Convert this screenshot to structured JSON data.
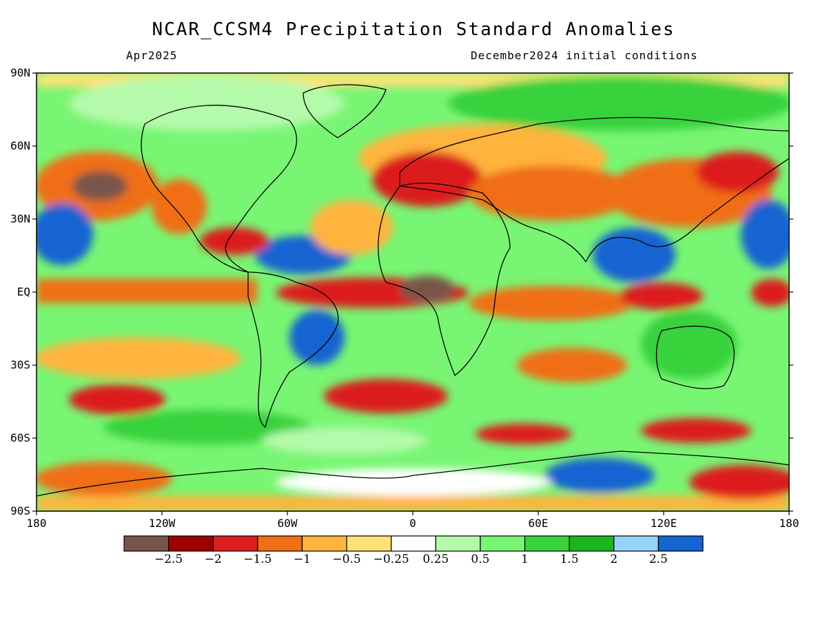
{
  "header": {
    "title": "NCAR_CCSM4 Precipitation Standard Anomalies",
    "valid_month": "Apr2025",
    "initial_conditions": "December2024 initial conditions"
  },
  "axes": {
    "lat_labels": [
      "90N",
      "60N",
      "30N",
      "EQ",
      "30S",
      "60S",
      "90S"
    ],
    "lon_labels": [
      "180",
      "120W",
      "60W",
      "0",
      "60E",
      "120E",
      "180"
    ]
  },
  "colorbar": {
    "colors": [
      "#795548",
      "#a00000",
      "#dc1e1e",
      "#f06e14",
      "#ffb43c",
      "#ffe178",
      "#ffffff",
      "#b4faaa",
      "#78f573",
      "#37d23c",
      "#1eb41e",
      "#96d2fa",
      "#1464d2"
    ],
    "labels": [
      "−2.5",
      "−2",
      "−1.5",
      "−1",
      "−0.5",
      "−0.25",
      "0.25",
      "0.5",
      "1",
      "1.5",
      "2",
      "2.5"
    ]
  }
}
